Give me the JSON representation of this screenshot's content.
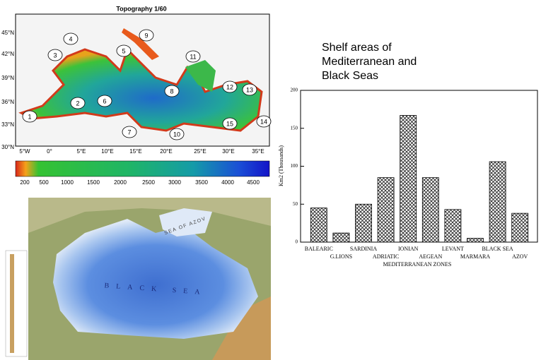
{
  "slide_title": [
    "Shelf areas of",
    "Mediterranean and",
    "Black Seas"
  ],
  "maps": {
    "mediterranean": {
      "title": "Topography 1/60",
      "lat_labels": [
        "45°N",
        "42°N",
        "39°N",
        "36°N",
        "33°N",
        "30°N"
      ],
      "lon_labels": [
        "5°W",
        "0°",
        "5°E",
        "10°E",
        "15°E",
        "20°E",
        "25°E",
        "30°E",
        "35°E"
      ],
      "regions": [
        "1",
        "2",
        "3",
        "4",
        "5",
        "6",
        "7",
        "8",
        "9",
        "10",
        "11",
        "12",
        "13",
        "14",
        "15"
      ],
      "depth_labels": [
        "200",
        "500",
        "1000",
        "1500",
        "2000",
        "2500",
        "3000",
        "3500",
        "4000",
        "4500"
      ]
    },
    "black_sea": {
      "sea_label": "BLACK SEA",
      "azov_label": "SEA OF AZOV"
    }
  },
  "chart_data": {
    "type": "bar",
    "categories": [
      "BALEARIC",
      "G.LIONS",
      "SARDINIA",
      "ADRIATIC",
      "IONIAN",
      "AEGEAN",
      "LEVANT",
      "MARMARA",
      "BLACK SEA",
      "AZOV"
    ],
    "values": [
      45,
      12,
      50,
      85,
      167,
      85,
      43,
      5,
      106,
      38
    ],
    "color": "#222222",
    "x_label": "MEDITERRANEAN ZONES",
    "y_label": "Km2 (Thousands)",
    "ylim": [
      0,
      200
    ],
    "yticks": [
      0,
      50,
      100,
      150,
      200
    ]
  }
}
